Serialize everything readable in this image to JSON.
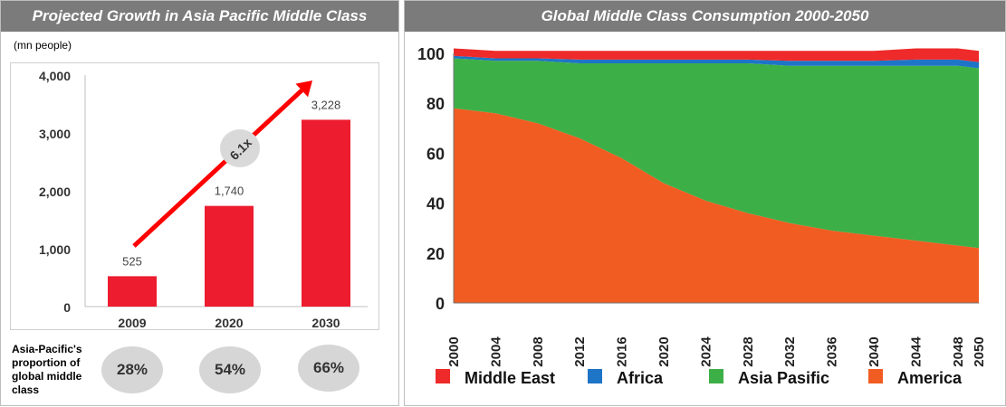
{
  "left_panel": {
    "title": "Projected Growth in Asia Pacific Middle Class",
    "unit": "(mn people)",
    "growth_label": "6.1x",
    "proportion_caption": "Asia-Pacific's proportion of global middle class",
    "proportions": [
      "28%",
      "54%",
      "66%"
    ]
  },
  "right_panel": {
    "title": "Global Middle Class Consumption 2000-2050"
  },
  "colors": {
    "bar": "#ed1c2e",
    "header": "#7b7b7b",
    "middle_east": "#ee2a2a",
    "africa": "#1e74c6",
    "asia_pacific": "#3daf47",
    "america": "#f15c22"
  },
  "chart_data": [
    {
      "type": "bar",
      "title": "Projected Growth in Asia Pacific Middle Class",
      "ylabel": "(mn people)",
      "categories": [
        "2009",
        "2020",
        "2030"
      ],
      "values": [
        525,
        1740,
        3228
      ],
      "value_labels": [
        "525",
        "1,740",
        "3,228"
      ],
      "ylim": [
        0,
        4000
      ],
      "yticks": [
        0,
        1000,
        2000,
        3000,
        4000
      ],
      "ytick_labels": [
        "0",
        "1,000",
        "2,000",
        "3,000",
        "4,000"
      ],
      "annotation": "6.1x"
    },
    {
      "type": "area",
      "stacked": true,
      "title": "Global Middle Class Consumption 2000-2050",
      "x": [
        2000,
        2004,
        2008,
        2012,
        2016,
        2020,
        2024,
        2028,
        2032,
        2036,
        2040,
        2044,
        2048,
        2050
      ],
      "xtick_labels": [
        "2000",
        "2004",
        "2008",
        "2012",
        "2016",
        "2020",
        "2024",
        "2028",
        "2032",
        "2036",
        "2040",
        "2044",
        "2048",
        "2050"
      ],
      "ylim": [
        0,
        100
      ],
      "yticks": [
        0,
        20,
        40,
        60,
        80,
        100
      ],
      "legend_position": "bottom",
      "series": [
        {
          "name": "America",
          "values": [
            78,
            76,
            72,
            66,
            58,
            48,
            41,
            36,
            32,
            29,
            27,
            25,
            23,
            22
          ]
        },
        {
          "name": "Asia Pasific",
          "values": [
            20,
            21,
            25,
            30,
            38,
            48,
            55,
            60,
            63,
            66,
            68,
            70,
            72,
            72
          ]
        },
        {
          "name": "Africa",
          "values": [
            1,
            1,
            1,
            1.5,
            1.5,
            1.5,
            1.5,
            1.5,
            2,
            2,
            2,
            2.5,
            2.5,
            2.5
          ]
        },
        {
          "name": "Middle East",
          "values": [
            3,
            3,
            3,
            3.5,
            3.5,
            3.5,
            3.5,
            3.5,
            4,
            4,
            4,
            4.5,
            4.5,
            4.5
          ]
        }
      ],
      "legend": [
        "Middle East",
        "Africa",
        "Asia Pasific",
        "America"
      ]
    }
  ]
}
